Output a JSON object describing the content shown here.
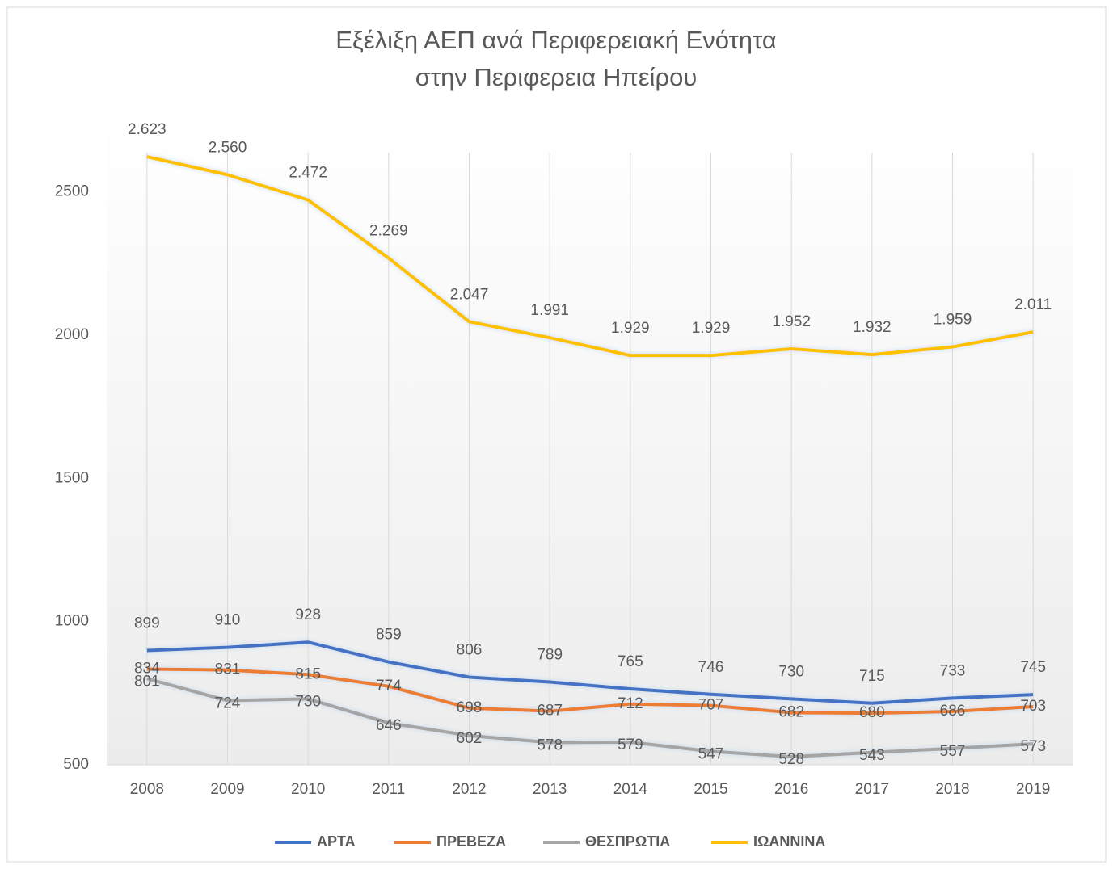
{
  "chart_data": {
    "type": "line",
    "title": [
      "Εξέλιξη ΑΕΠ ανά Περιφερειακή Ενότητα",
      "στην Περιφερεια Ηπείρου"
    ],
    "categories": [
      "2008",
      "2009",
      "2010",
      "2011",
      "2012",
      "2013",
      "2014",
      "2015",
      "2016",
      "2017",
      "2018",
      "2019"
    ],
    "series": [
      {
        "name": "ΑΡΤΑ",
        "color": "#4472c4",
        "values": [
          899,
          910,
          928,
          859,
          806,
          789,
          765,
          746,
          730,
          715,
          733,
          745
        ]
      },
      {
        "name": "ΠΡΕΒΕΖΑ",
        "color": "#ed7d31",
        "values": [
          834,
          831,
          815,
          774,
          698,
          687,
          712,
          707,
          682,
          680,
          686,
          703
        ]
      },
      {
        "name": "ΘΕΣΠΡΩΤΙΑ",
        "color": "#a5a5a5",
        "values": [
          801,
          724,
          730,
          646,
          602,
          578,
          579,
          547,
          528,
          543,
          557,
          573
        ]
      },
      {
        "name": "ΙΩΑΝΝΙΝΑ",
        "color": "#ffc000",
        "values": [
          2623,
          2560,
          2472,
          2269,
          2047,
          1991,
          1929,
          1929,
          1952,
          1932,
          1959,
          2011
        ],
        "value_labels": [
          "2.623",
          "2.560",
          "2.472",
          "2.269",
          "2.047",
          "1.991",
          "1.929",
          "1.929",
          "1.952",
          "1.932",
          "1.959",
          "2.011"
        ]
      }
    ],
    "ylim": [
      500,
      2750
    ],
    "yticks": [
      500,
      1000,
      1500,
      2000,
      2500
    ],
    "grid": true,
    "legend": "bottom"
  }
}
